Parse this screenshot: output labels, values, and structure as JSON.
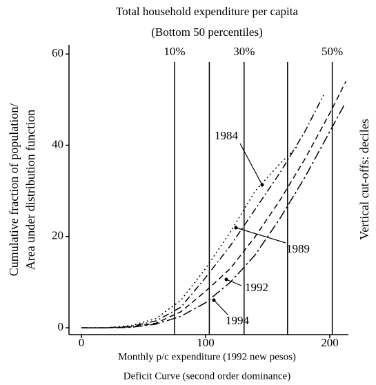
{
  "chart_data": {
    "type": "line",
    "title": "Total household expenditure per capita",
    "subtitle": "(Bottom 50 percentiles)",
    "xlabel": "Monthly p/c expenditure (1992 new pesos)",
    "caption": "Deficit Curve  (second order dominance)",
    "ylabel": [
      "Cumulative fraction of population/",
      "Area under distribution function"
    ],
    "y2label": "Vertical cut-offs: deciles",
    "xlim": [
      -10,
      215
    ],
    "ylim": [
      -1.5,
      62
    ],
    "xticks": [
      0,
      100,
      200
    ],
    "yticks": [
      0,
      20,
      40,
      60
    ],
    "cutoffs": [
      75,
      103,
      131,
      166,
      202
    ],
    "cutoff_labels": [
      "10%",
      null,
      "30%",
      null,
      "50%"
    ],
    "series": [
      {
        "name": "1984",
        "color": "#000000",
        "line_style": "dotted",
        "x": [
          0,
          20,
          40,
          60,
          80,
          100,
          120,
          140,
          160,
          175
        ],
        "values": [
          0,
          0,
          0.5,
          2,
          6,
          13,
          21,
          30,
          36,
          40
        ]
      },
      {
        "name": "1989",
        "color": "#000000",
        "line_style": "dashdot",
        "x": [
          0,
          20,
          40,
          60,
          80,
          100,
          120,
          140,
          160,
          180,
          195
        ],
        "values": [
          0,
          0,
          0.3,
          1.5,
          4.5,
          11,
          18,
          26,
          34,
          43,
          51
        ]
      },
      {
        "name": "1992",
        "color": "#000000",
        "line_style": "dashed",
        "x": [
          0,
          20,
          40,
          60,
          80,
          100,
          120,
          140,
          160,
          180,
          200,
          213
        ],
        "values": [
          0,
          0,
          0.2,
          1,
          3.5,
          8,
          13,
          20,
          28,
          37,
          47,
          54
        ]
      },
      {
        "name": "1994",
        "color": "#000000",
        "line_style": "longdashdot",
        "x": [
          0,
          20,
          40,
          60,
          80,
          100,
          120,
          140,
          160,
          180,
          200,
          212
        ],
        "values": [
          0,
          0,
          0.1,
          0.8,
          2.5,
          5.5,
          10,
          16,
          24,
          33,
          43,
          49
        ]
      }
    ]
  }
}
